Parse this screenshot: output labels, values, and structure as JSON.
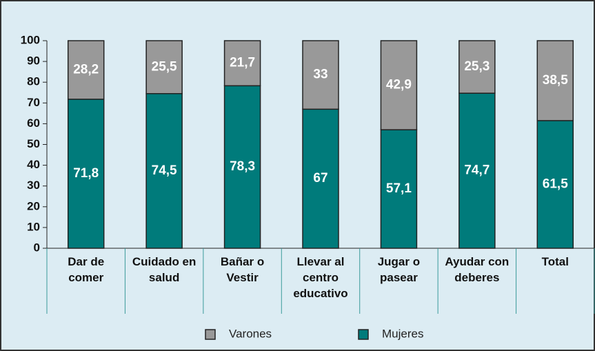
{
  "chart_data": {
    "type": "stacked_bar",
    "categories": [
      "Dar de comer",
      "Cuidado en salud",
      "Bañar o Vestir",
      "Llevar al centro educativo",
      "Jugar o pasear",
      "Ayudar con deberes",
      "Total"
    ],
    "series": [
      {
        "name": "Mujeres",
        "color": "#007b7b",
        "values": [
          71.8,
          74.5,
          78.3,
          67,
          57.1,
          74.7,
          61.5
        ],
        "value_labels": [
          "71,8",
          "74,5",
          "78,3",
          "67",
          "57,1",
          "74,7",
          "61,5"
        ]
      },
      {
        "name": "Varones",
        "color": "#999999",
        "values": [
          28.2,
          25.5,
          21.7,
          33,
          42.9,
          25.3,
          38.5
        ],
        "value_labels": [
          "28,2",
          "25,5",
          "21,7",
          "33",
          "42,9",
          "25,3",
          "38,5"
        ]
      }
    ],
    "ylim": [
      0,
      100
    ],
    "yticks": [
      0,
      10,
      20,
      30,
      40,
      50,
      60,
      70,
      80,
      90,
      100
    ],
    "grid": false
  }
}
